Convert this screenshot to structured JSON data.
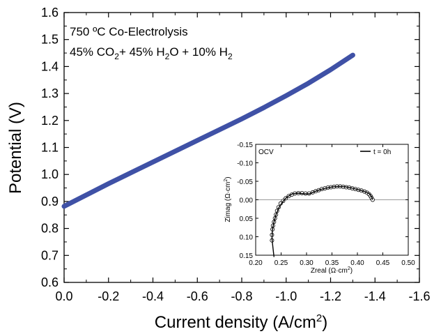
{
  "chart_data": [
    {
      "type": "line",
      "annotations": [
        {
          "segments": [
            {
              "text": "750 ºC Co-Electrolysis"
            }
          ]
        },
        {
          "segments": [
            {
              "text": "45% CO"
            },
            {
              "text": "2",
              "sub": true
            },
            {
              "text": "+ 45% H"
            },
            {
              "text": "2",
              "sub": true
            },
            {
              "text": "O + 10% H"
            },
            {
              "text": "2",
              "sub": true
            }
          ]
        }
      ],
      "xlabel": "Current density (A/cm",
      "xlabel_sup": "2",
      "xlabel_end": ")",
      "ylabel": "Potential (V)",
      "xlim": [
        0.0,
        -1.6
      ],
      "ylim": [
        0.6,
        1.6
      ],
      "xticks": [
        0.0,
        -0.2,
        -0.4,
        -0.6,
        -0.8,
        -1.0,
        -1.2,
        -1.4,
        -1.6
      ],
      "xtick_labels": [
        "0.0",
        "-0.2",
        "-0.4",
        "-0.6",
        "-0.8",
        "-1.0",
        "-1.2",
        "-1.4",
        "-1.6"
      ],
      "yticks": [
        0.6,
        0.7,
        0.8,
        0.9,
        1.0,
        1.1,
        1.2,
        1.3,
        1.4,
        1.5,
        1.6
      ],
      "ytick_labels": [
        "0.6",
        "0.7",
        "0.8",
        "0.9",
        "1.0",
        "1.1",
        "1.2",
        "1.3",
        "1.4",
        "1.5",
        "1.6"
      ],
      "series": [
        {
          "color": "#3f51a6",
          "points": [
            [
              0.0,
              0.882
            ],
            [
              -0.1,
              0.924
            ],
            [
              -0.2,
              0.966
            ],
            [
              -0.3,
              1.006
            ],
            [
              -0.4,
              1.046
            ],
            [
              -0.5,
              1.086
            ],
            [
              -0.6,
              1.126
            ],
            [
              -0.7,
              1.166
            ],
            [
              -0.8,
              1.206
            ],
            [
              -0.9,
              1.248
            ],
            [
              -1.0,
              1.292
            ],
            [
              -1.1,
              1.338
            ],
            [
              -1.2,
              1.388
            ],
            [
              -1.3,
              1.442
            ]
          ]
        }
      ]
    },
    {
      "type": "scatter",
      "corner_label": "OCV",
      "xlabel": "Zreal (Ω·cm",
      "xlabel_sup": "2",
      "xlabel_end": ")",
      "ylabel": "Zimag (Ω·cm",
      "ylabel_sup": "2",
      "ylabel_end": ")",
      "xlim": [
        0.2,
        0.5
      ],
      "ylim_top_to_bottom": [
        -0.15,
        0.15
      ],
      "xticks": [
        0.2,
        0.25,
        0.3,
        0.35,
        0.4,
        0.45,
        0.5
      ],
      "xtick_labels": [
        "0.20",
        "0.25",
        "0.30",
        "0.35",
        "0.40",
        "0.45",
        "0.50"
      ],
      "yticks": [
        -0.15,
        -0.1,
        -0.05,
        0.0,
        0.05,
        0.1,
        0.15
      ],
      "ytick_labels": [
        "-0.15",
        "-0.10",
        "-0.05",
        "0.00",
        "0.05",
        "0.10",
        "0.15"
      ],
      "zero_line": true,
      "legend": {
        "position": "top-right",
        "label": "t = 0h"
      },
      "series": [
        {
          "name": "t = 0h",
          "color": "#000000",
          "marker": "open-circle",
          "line_points": [
            [
              0.236,
              0.155
            ],
            [
              0.234,
              0.13
            ],
            [
              0.232,
              0.105
            ],
            [
              0.233,
              0.08
            ],
            [
              0.236,
              0.06
            ],
            [
              0.24,
              0.04
            ],
            [
              0.246,
              0.02
            ],
            [
              0.254,
              0.004
            ],
            [
              0.262,
              -0.008
            ],
            [
              0.272,
              -0.016
            ],
            [
              0.284,
              -0.018
            ],
            [
              0.296,
              -0.016
            ],
            [
              0.306,
              -0.016
            ],
            [
              0.316,
              -0.022
            ],
            [
              0.328,
              -0.028
            ],
            [
              0.34,
              -0.032
            ],
            [
              0.352,
              -0.035
            ],
            [
              0.364,
              -0.036
            ],
            [
              0.376,
              -0.035
            ],
            [
              0.388,
              -0.032
            ],
            [
              0.4,
              -0.028
            ],
            [
              0.41,
              -0.024
            ],
            [
              0.418,
              -0.02
            ],
            [
              0.424,
              -0.016
            ],
            [
              0.428,
              -0.008
            ],
            [
              0.43,
              0.0
            ]
          ],
          "markers": [
            [
              0.232,
              0.11
            ],
            [
              0.232,
              0.095
            ],
            [
              0.233,
              0.08
            ],
            [
              0.234,
              0.07
            ],
            [
              0.236,
              0.06
            ],
            [
              0.238,
              0.05
            ],
            [
              0.24,
              0.04
            ],
            [
              0.242,
              0.03
            ],
            [
              0.245,
              0.02
            ],
            [
              0.249,
              0.01
            ],
            [
              0.254,
              0.003
            ],
            [
              0.259,
              -0.004
            ],
            [
              0.265,
              -0.01
            ],
            [
              0.271,
              -0.014
            ],
            [
              0.277,
              -0.017
            ],
            [
              0.284,
              -0.018
            ],
            [
              0.291,
              -0.018
            ],
            [
              0.298,
              -0.017
            ],
            [
              0.305,
              -0.017
            ],
            [
              0.312,
              -0.02
            ],
            [
              0.318,
              -0.023
            ],
            [
              0.324,
              -0.026
            ],
            [
              0.33,
              -0.029
            ],
            [
              0.336,
              -0.031
            ],
            [
              0.342,
              -0.033
            ],
            [
              0.348,
              -0.034
            ],
            [
              0.354,
              -0.035
            ],
            [
              0.36,
              -0.036
            ],
            [
              0.366,
              -0.036
            ],
            [
              0.372,
              -0.035
            ],
            [
              0.378,
              -0.034
            ],
            [
              0.384,
              -0.033
            ],
            [
              0.39,
              -0.031
            ],
            [
              0.396,
              -0.029
            ],
            [
              0.402,
              -0.027
            ],
            [
              0.408,
              -0.025
            ],
            [
              0.414,
              -0.022
            ],
            [
              0.419,
              -0.019
            ],
            [
              0.423,
              -0.015
            ],
            [
              0.426,
              -0.01
            ],
            [
              0.428,
              -0.005
            ],
            [
              0.43,
              0.0
            ]
          ]
        }
      ]
    }
  ]
}
